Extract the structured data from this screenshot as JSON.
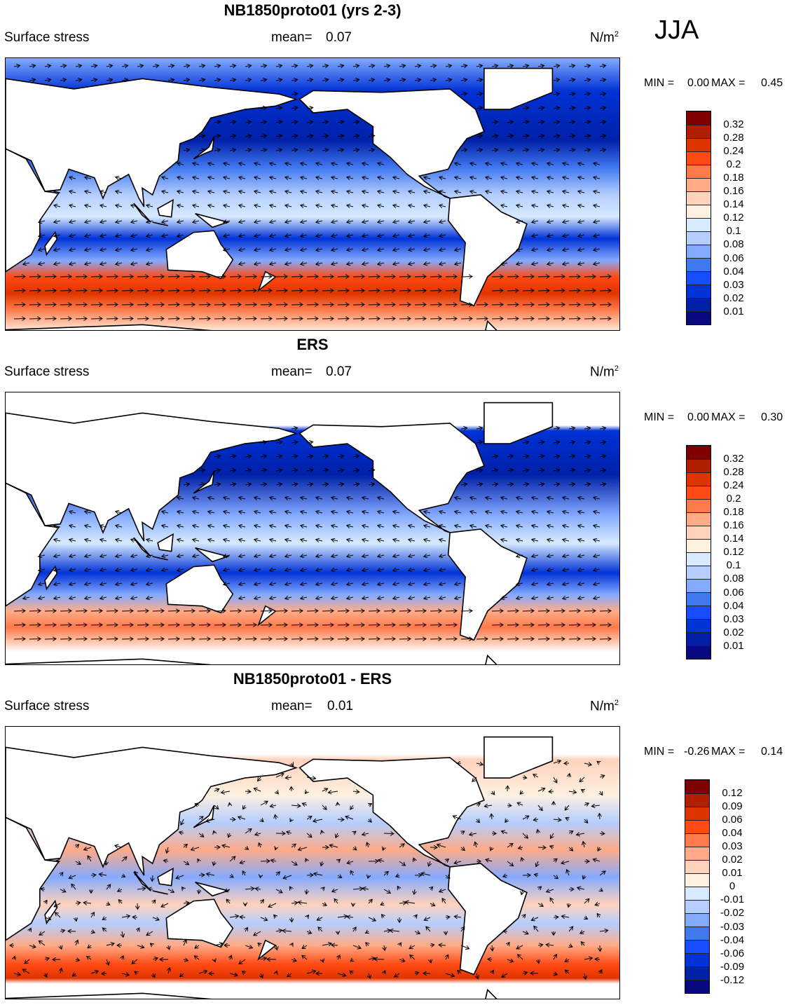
{
  "season": "JJA",
  "colors": [
    "#0a0a80",
    "#0020a8",
    "#0032d6",
    "#1a4cff",
    "#4078f0",
    "#84aaff",
    "#b4ceff",
    "#d8eaff",
    "#fff0e0",
    "#ffd2bc",
    "#ffab88",
    "#ff7a4a",
    "#ff4a14",
    "#e03400",
    "#b02000",
    "#800000"
  ],
  "panels": [
    {
      "title": "NB1850proto01 (yrs 2-3)",
      "field": "Surface stress",
      "mean_label": "mean=",
      "mean": "0.07",
      "units": "N/m",
      "units_sup": "2",
      "min_label": "MIN =",
      "min": "0.00",
      "max_label": "MAX =",
      "max": "0.45",
      "colorbar_labels": [
        "0.01",
        "0.02",
        "0.03",
        "0.04",
        "0.06",
        "0.08",
        "0.1",
        "0.12",
        "0.14",
        "0.16",
        "0.18",
        "0.2",
        "0.24",
        "0.28",
        "0.32"
      ]
    },
    {
      "title": "ERS",
      "field": "Surface stress",
      "mean_label": "mean=",
      "mean": "0.07",
      "units": "N/m",
      "units_sup": "2",
      "min_label": "MIN =",
      "min": "0.00",
      "max_label": "MAX =",
      "max": "0.30",
      "colorbar_labels": [
        "0.01",
        "0.02",
        "0.03",
        "0.04",
        "0.06",
        "0.08",
        "0.1",
        "0.12",
        "0.14",
        "0.16",
        "0.18",
        "0.2",
        "0.24",
        "0.28",
        "0.32"
      ]
    },
    {
      "title": "NB1850proto01 - ERS",
      "field": "Surface stress",
      "mean_label": "mean=",
      "mean": "0.01",
      "units": "N/m",
      "units_sup": "2",
      "min_label": "MIN =",
      "min": "-0.26",
      "max_label": "MAX =",
      "max": "0.14",
      "colorbar_labels": [
        "-0.12",
        "-0.09",
        "-0.06",
        "-0.04",
        "-0.03",
        "-0.02",
        "-0.01",
        "0",
        "0.01",
        "0.02",
        "0.03",
        "0.04",
        "0.06",
        "0.09",
        "0.12"
      ]
    }
  ]
}
